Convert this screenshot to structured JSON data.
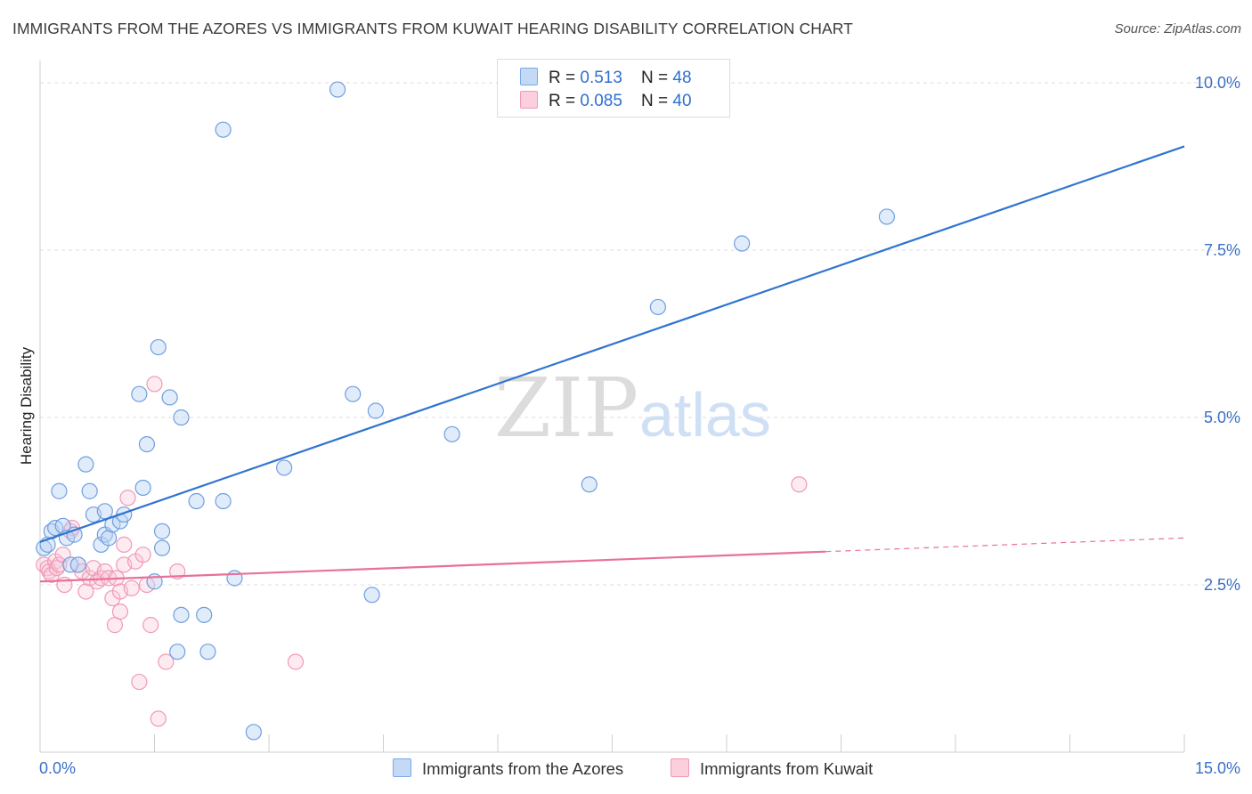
{
  "title": "IMMIGRANTS FROM THE AZORES VS IMMIGRANTS FROM KUWAIT HEARING DISABILITY CORRELATION CHART",
  "source": "Source: ZipAtlas.com",
  "watermark": {
    "zip": "ZIP",
    "atlas": "atlas"
  },
  "legend": {
    "rows": [
      {
        "r_label": "R = ",
        "r_value": "0.513",
        "n_label": "N = ",
        "n_value": "48",
        "color": "#a9c8f2"
      },
      {
        "r_label": "R = ",
        "r_value": "0.085",
        "n_label": "N = ",
        "n_value": "40",
        "color": "#f7b8cc"
      }
    ]
  },
  "colors": {
    "blue_line": "#2f74d0",
    "pink_line": "#e8709a",
    "blue_fill": "#bcd4f5",
    "pink_fill": "#fac6d6",
    "tick_text": "#3a6fc8"
  },
  "chart_data": {
    "type": "scatter",
    "xlabel": "",
    "ylabel": "Hearing Disability",
    "xlim": [
      0,
      15
    ],
    "ylim": [
      0,
      10.2
    ],
    "x_tick_labels": [
      {
        "value": 0,
        "label": "0.0%"
      },
      {
        "value": 15,
        "label": "15.0%"
      }
    ],
    "y_tick_labels": [
      {
        "value": 2.5,
        "label": "2.5%"
      },
      {
        "value": 5.0,
        "label": "5.0%"
      },
      {
        "value": 7.5,
        "label": "7.5%"
      },
      {
        "value": 10.0,
        "label": "10.0%"
      }
    ],
    "grid": "horizontal dashed",
    "legend_position": "top-center",
    "series": [
      {
        "name": "Immigrants from the Azores",
        "color": "#7aa8e8",
        "trend": {
          "x": [
            0,
            15
          ],
          "y": [
            3.14,
            9.05
          ],
          "dashed_from": null
        },
        "points": [
          [
            0.05,
            3.05
          ],
          [
            0.1,
            3.1
          ],
          [
            0.15,
            3.3
          ],
          [
            0.2,
            3.35
          ],
          [
            0.25,
            3.9
          ],
          [
            0.3,
            3.38
          ],
          [
            0.35,
            3.2
          ],
          [
            0.4,
            2.8
          ],
          [
            0.45,
            3.25
          ],
          [
            0.5,
            2.8
          ],
          [
            0.6,
            4.3
          ],
          [
            0.65,
            3.9
          ],
          [
            0.7,
            3.55
          ],
          [
            0.8,
            3.1
          ],
          [
            0.85,
            3.6
          ],
          [
            0.85,
            3.25
          ],
          [
            0.9,
            3.2
          ],
          [
            0.95,
            3.4
          ],
          [
            1.05,
            3.45
          ],
          [
            1.1,
            3.55
          ],
          [
            1.3,
            5.35
          ],
          [
            1.35,
            3.95
          ],
          [
            1.4,
            4.6
          ],
          [
            1.5,
            2.55
          ],
          [
            1.55,
            6.05
          ],
          [
            1.6,
            3.3
          ],
          [
            1.6,
            3.05
          ],
          [
            1.7,
            5.3
          ],
          [
            1.8,
            1.5
          ],
          [
            1.85,
            2.05
          ],
          [
            1.85,
            5.0
          ],
          [
            2.05,
            3.75
          ],
          [
            2.15,
            2.05
          ],
          [
            2.2,
            1.5
          ],
          [
            2.4,
            9.3
          ],
          [
            2.4,
            3.75
          ],
          [
            2.55,
            2.6
          ],
          [
            2.8,
            0.3
          ],
          [
            3.2,
            4.25
          ],
          [
            3.9,
            9.9
          ],
          [
            4.1,
            5.35
          ],
          [
            4.35,
            2.35
          ],
          [
            4.4,
            5.1
          ],
          [
            5.4,
            4.75
          ],
          [
            7.2,
            4.0
          ],
          [
            8.1,
            6.65
          ],
          [
            9.2,
            7.6
          ],
          [
            11.1,
            8.0
          ]
        ]
      },
      {
        "name": "Immigrants from Kuwait",
        "color": "#f09ab6",
        "trend": {
          "x": [
            0,
            15
          ],
          "y": [
            2.55,
            3.2
          ],
          "dashed_from": 10.3
        },
        "points": [
          [
            0.05,
            2.8
          ],
          [
            0.1,
            2.75
          ],
          [
            0.12,
            2.7
          ],
          [
            0.15,
            2.65
          ],
          [
            0.2,
            2.85
          ],
          [
            0.22,
            2.75
          ],
          [
            0.25,
            2.8
          ],
          [
            0.3,
            2.95
          ],
          [
            0.32,
            2.5
          ],
          [
            0.4,
            3.3
          ],
          [
            0.42,
            3.35
          ],
          [
            0.5,
            2.8
          ],
          [
            0.55,
            2.7
          ],
          [
            0.6,
            2.4
          ],
          [
            0.65,
            2.6
          ],
          [
            0.7,
            2.75
          ],
          [
            0.75,
            2.55
          ],
          [
            0.8,
            2.6
          ],
          [
            0.85,
            2.7
          ],
          [
            0.9,
            2.6
          ],
          [
            0.95,
            2.3
          ],
          [
            0.98,
            1.9
          ],
          [
            1.0,
            2.6
          ],
          [
            1.05,
            2.4
          ],
          [
            1.05,
            2.1
          ],
          [
            1.1,
            2.8
          ],
          [
            1.1,
            3.1
          ],
          [
            1.15,
            3.8
          ],
          [
            1.2,
            2.45
          ],
          [
            1.25,
            2.85
          ],
          [
            1.3,
            1.05
          ],
          [
            1.35,
            2.95
          ],
          [
            1.4,
            2.5
          ],
          [
            1.45,
            1.9
          ],
          [
            1.5,
            5.5
          ],
          [
            1.55,
            0.5
          ],
          [
            1.65,
            1.35
          ],
          [
            1.8,
            2.7
          ],
          [
            3.35,
            1.35
          ],
          [
            9.95,
            4.0
          ]
        ]
      }
    ]
  }
}
